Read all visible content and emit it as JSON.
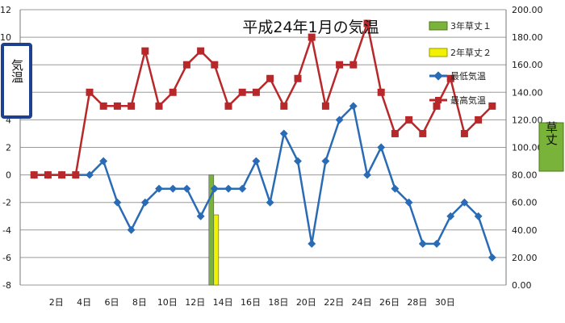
{
  "chart_data": {
    "type": "line",
    "title": "平成24年1月の気温",
    "ylabel_left": "気温",
    "ylabel_right": "草丈",
    "y_left": {
      "min": -8,
      "max": 12,
      "ticks": [
        -8,
        -6,
        -4,
        -2,
        0,
        2,
        4,
        6,
        8,
        10,
        12
      ]
    },
    "y_right": {
      "min": 0,
      "max": 200,
      "ticks": [
        "0.00",
        "20.00",
        "40.00",
        "60.00",
        "80.00",
        "100.00",
        "120.00",
        "140.00",
        "160.00",
        "180.00",
        "200.00"
      ]
    },
    "x": [
      1,
      2,
      3,
      4,
      5,
      6,
      7,
      8,
      9,
      10,
      11,
      12,
      13,
      14,
      15,
      16,
      17,
      18,
      19,
      20,
      21,
      22,
      23,
      24,
      25,
      26,
      27,
      28,
      29,
      30,
      31
    ],
    "x_tick_labels": [
      {
        "day": 2,
        "label": "2日"
      },
      {
        "day": 4,
        "label": "4日"
      },
      {
        "day": 6,
        "label": "6日"
      },
      {
        "day": 8,
        "label": "8日"
      },
      {
        "day": 10,
        "label": "10日"
      },
      {
        "day": 12,
        "label": "12日"
      },
      {
        "day": 14,
        "label": "14日"
      },
      {
        "day": 16,
        "label": "16日"
      },
      {
        "day": 18,
        "label": "18日"
      },
      {
        "day": 20,
        "label": "20日"
      },
      {
        "day": 22,
        "label": "22日"
      },
      {
        "day": 24,
        "label": "24日"
      },
      {
        "day": 26,
        "label": "26日"
      },
      {
        "day": 28,
        "label": "28日"
      },
      {
        "day": 30,
        "label": "30日"
      }
    ],
    "series": [
      {
        "name": "最低気温",
        "axis": "left",
        "color": "#2a6bb5",
        "marker": "diamond",
        "values": [
          0,
          0,
          0,
          0,
          0,
          1,
          -2,
          -4,
          -2,
          -1,
          -1,
          -1,
          -3,
          -1,
          -1,
          -1,
          1,
          -2,
          3,
          1,
          -5,
          1,
          4,
          5,
          0,
          2,
          -1,
          -2,
          -5,
          -5,
          -3,
          -2,
          -3,
          -6
        ],
        "x": [
          1,
          2,
          3,
          4,
          5,
          6,
          7,
          8,
          9,
          10,
          11,
          12,
          13,
          14,
          15,
          16,
          17,
          18,
          19,
          20,
          21,
          22,
          23,
          24,
          25,
          26,
          27,
          28,
          29,
          30,
          31,
          32,
          33,
          34
        ]
      },
      {
        "name": "最高気温",
        "axis": "left",
        "color": "#b8282a",
        "marker": "square",
        "values": [
          0,
          0,
          0,
          0,
          6,
          5,
          5,
          5,
          9,
          5,
          6,
          8,
          9,
          8,
          5,
          6,
          6,
          7,
          5,
          7,
          10,
          5,
          8,
          8,
          11,
          6,
          3,
          4,
          3,
          5,
          7,
          3,
          4,
          5
        ],
        "x": [
          1,
          2,
          3,
          4,
          5,
          6,
          7,
          8,
          9,
          10,
          11,
          12,
          13,
          14,
          15,
          16,
          17,
          18,
          19,
          20,
          21,
          22,
          23,
          24,
          25,
          26,
          27,
          28,
          29,
          30,
          31,
          32,
          33,
          34
        ]
      },
      {
        "name": "3年草丈１",
        "axis": "right",
        "color": "#7ab33a",
        "type": "bar",
        "points": [
          {
            "x": 14,
            "value": 80
          }
        ]
      },
      {
        "name": "2年草丈２",
        "axis": "right",
        "color": "#f2f200",
        "type": "bar",
        "points": [
          {
            "x": 14,
            "value": 51
          }
        ]
      }
    ],
    "legend_position": "top-right",
    "grid": "horizontal"
  }
}
